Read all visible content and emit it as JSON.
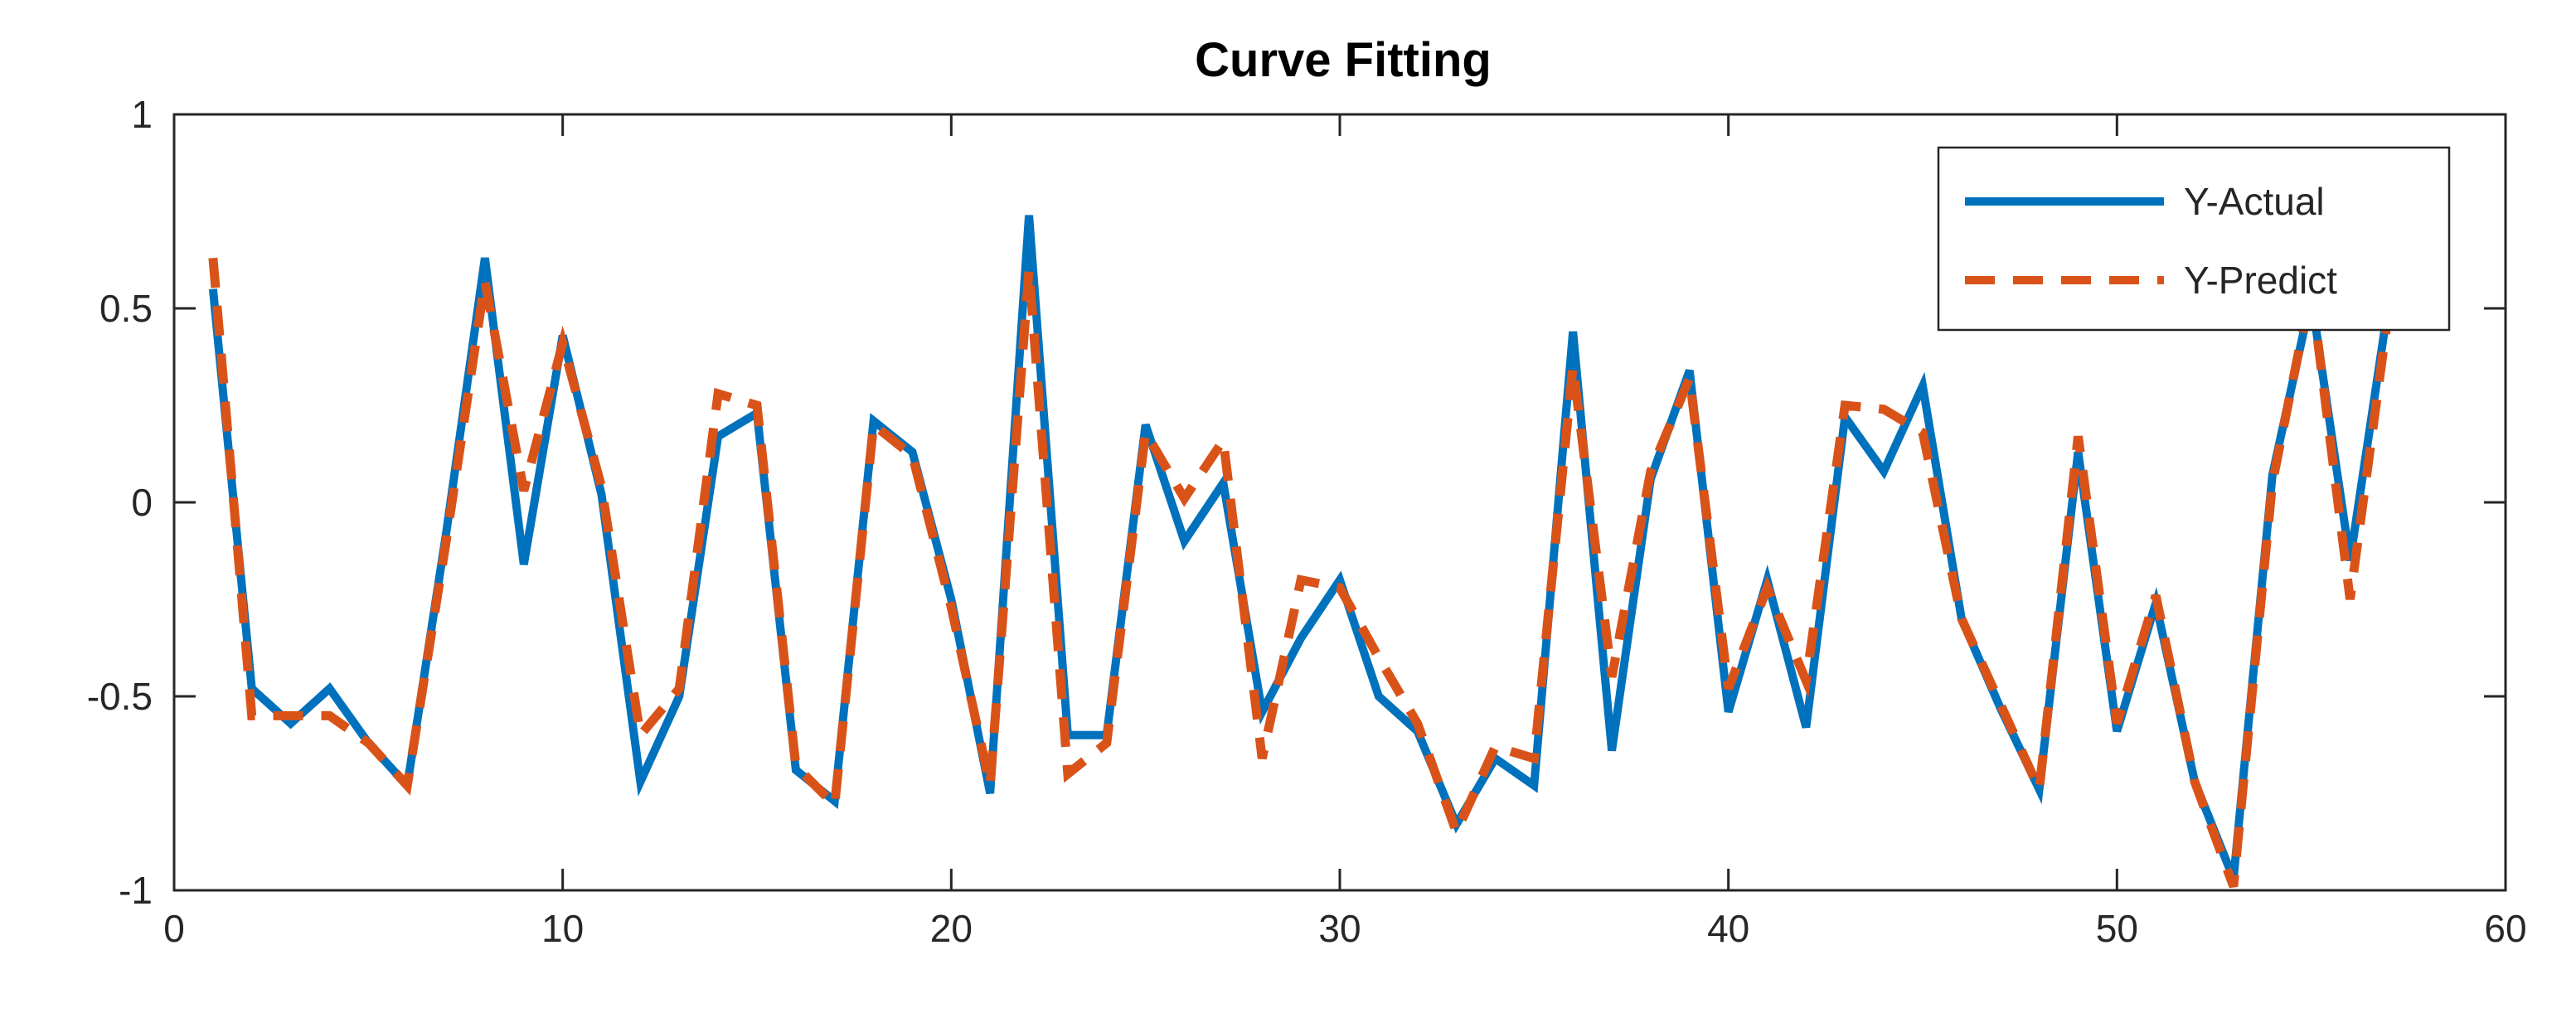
{
  "chart_data": {
    "type": "line",
    "title": "Curve Fitting",
    "xlabel": "",
    "ylabel": "",
    "xlim": [
      0,
      60
    ],
    "ylim": [
      -1,
      1
    ],
    "xticks": [
      "0",
      "10",
      "20",
      "30",
      "40",
      "50",
      "60"
    ],
    "yticks": [
      "-1",
      "-0.5",
      "0",
      "0.5",
      "1"
    ],
    "grid": false,
    "legend": {
      "placement": "top-right",
      "entries": [
        "Y-Actual",
        "Y-Predict"
      ]
    },
    "x": [
      1,
      2,
      3,
      4,
      5,
      6,
      7,
      8,
      9,
      10,
      11,
      12,
      13,
      14,
      15,
      16,
      17,
      18,
      19,
      20,
      21,
      22,
      23,
      24,
      25,
      26,
      27,
      28,
      29,
      30,
      31,
      32,
      33,
      34,
      35,
      36,
      37,
      38,
      39,
      40,
      41,
      42,
      43,
      44,
      45,
      46,
      47,
      48,
      49,
      50,
      51,
      52,
      53,
      54,
      55,
      56,
      57
    ],
    "series": [
      {
        "name": "Y-Actual",
        "color": "#0072BD",
        "style": "solid",
        "values": [
          0.55,
          -0.48,
          -0.57,
          -0.48,
          -0.62,
          -0.73,
          -0.08,
          0.63,
          -0.16,
          0.43,
          0.02,
          -0.72,
          -0.5,
          0.17,
          0.23,
          -0.69,
          -0.77,
          0.21,
          0.13,
          -0.25,
          -0.75,
          0.74,
          -0.6,
          -0.6,
          0.2,
          -0.1,
          0.05,
          -0.54,
          -0.35,
          -0.2,
          -0.5,
          -0.59,
          -0.83,
          -0.66,
          -0.73,
          0.44,
          -0.64,
          0.06,
          0.34,
          -0.54,
          -0.2,
          -0.58,
          0.22,
          0.08,
          0.3,
          -0.3,
          -0.53,
          -0.74,
          0.13,
          -0.59,
          -0.26,
          -0.72,
          -0.97,
          0.07,
          0.53,
          -0.15,
          0.52
        ]
      },
      {
        "name": "Y-Predict",
        "color": "#D95319",
        "style": "dashed",
        "values": [
          0.63,
          -0.55,
          -0.55,
          -0.55,
          -0.62,
          -0.73,
          -0.1,
          0.57,
          0.03,
          0.41,
          0.04,
          -0.6,
          -0.48,
          0.28,
          0.25,
          -0.68,
          -0.78,
          0.2,
          0.12,
          -0.27,
          -0.73,
          0.6,
          -0.7,
          -0.62,
          0.18,
          0.01,
          0.16,
          -0.66,
          -0.2,
          -0.22,
          -0.4,
          -0.57,
          -0.85,
          -0.63,
          -0.66,
          0.35,
          -0.45,
          0.08,
          0.32,
          -0.48,
          -0.22,
          -0.46,
          0.25,
          0.24,
          0.18,
          -0.3,
          -0.52,
          -0.74,
          0.17,
          -0.57,
          -0.24,
          -0.72,
          -0.99,
          0.05,
          0.55,
          -0.25,
          0.5
        ]
      }
    ]
  }
}
